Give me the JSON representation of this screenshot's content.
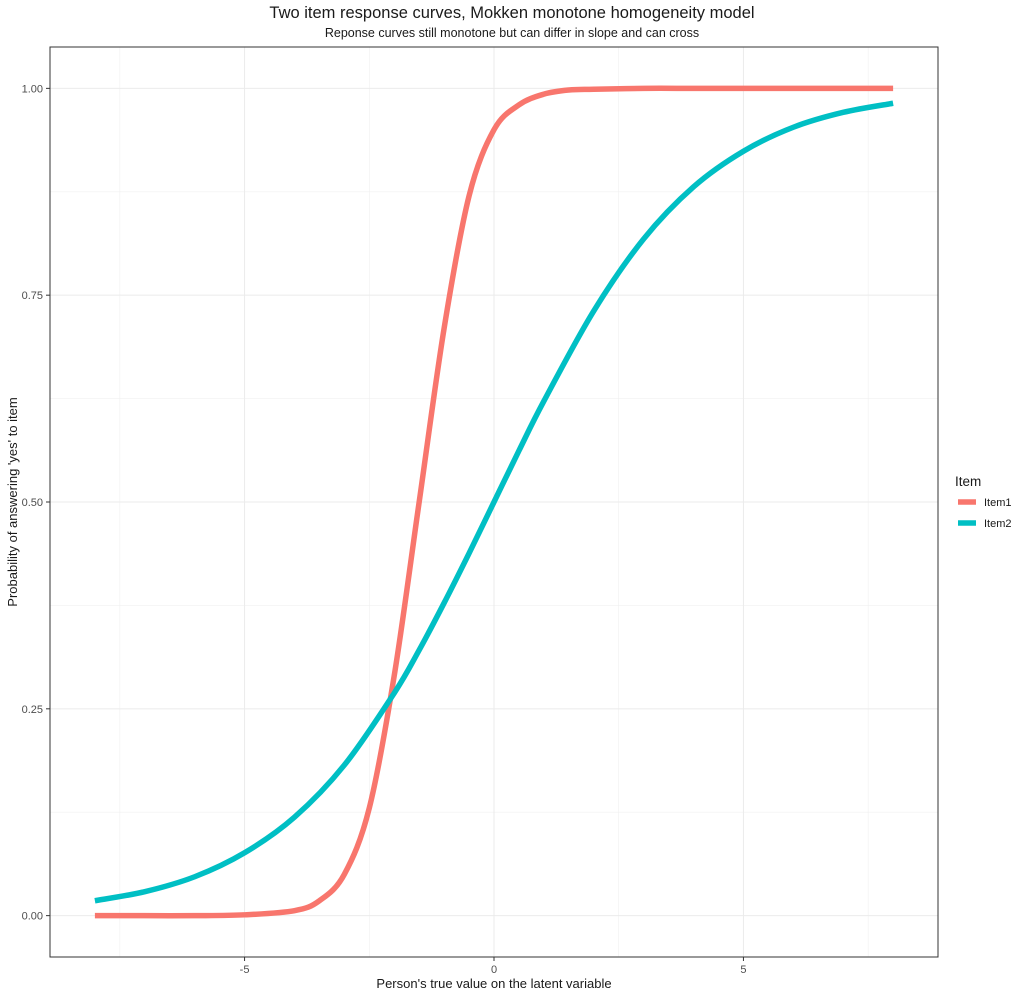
{
  "chart_data": {
    "type": "line",
    "title": "Two item response curves, Mokken monotone homogeneity model",
    "subtitle": "Reponse curves still monotone but can differ in slope and can cross",
    "xlabel": "Person's true value on the latent variable",
    "ylabel": "Probability of answering 'yes' to item",
    "xlim": [
      -8.9,
      8.9
    ],
    "ylim": [
      -0.05,
      1.05
    ],
    "x_ticks": [
      -5,
      0,
      5
    ],
    "x_tick_labels": [
      "-5",
      "0",
      "5"
    ],
    "y_ticks": [
      0,
      0.25,
      0.5,
      0.75,
      1
    ],
    "y_tick_labels": [
      "0.00",
      "0.25",
      "0.50",
      "0.75",
      "1.00"
    ],
    "grid": true,
    "legend": {
      "title": "Item",
      "position": "right"
    },
    "series": [
      {
        "name": "Item1",
        "color": "#F8766D",
        "x": [
          -8,
          -7,
          -6,
          -5,
          -4,
          -3.5,
          -3,
          -2.5,
          -2,
          -1.5,
          -1,
          -0.5,
          0,
          0.5,
          1,
          1.5,
          2,
          3,
          4,
          5,
          6,
          7,
          8
        ],
        "y": [
          0.0,
          0.0,
          0.0,
          0.001,
          0.006,
          0.018,
          0.05,
          0.13,
          0.29,
          0.5,
          0.71,
          0.87,
          0.95,
          0.98,
          0.993,
          0.998,
          0.999,
          1.0,
          1.0,
          1.0,
          1.0,
          1.0,
          1.0
        ]
      },
      {
        "name": "Item2",
        "color": "#00BFC4",
        "x": [
          -8,
          -7,
          -6,
          -5,
          -4,
          -3,
          -2,
          -1.5,
          -1,
          -0.5,
          0,
          0.5,
          1,
          2,
          3,
          4,
          5,
          6,
          7,
          8
        ],
        "y": [
          0.018,
          0.029,
          0.047,
          0.076,
          0.119,
          0.182,
          0.269,
          0.321,
          0.378,
          0.438,
          0.5,
          0.562,
          0.622,
          0.731,
          0.818,
          0.881,
          0.924,
          0.953,
          0.971,
          0.982
        ]
      }
    ]
  }
}
